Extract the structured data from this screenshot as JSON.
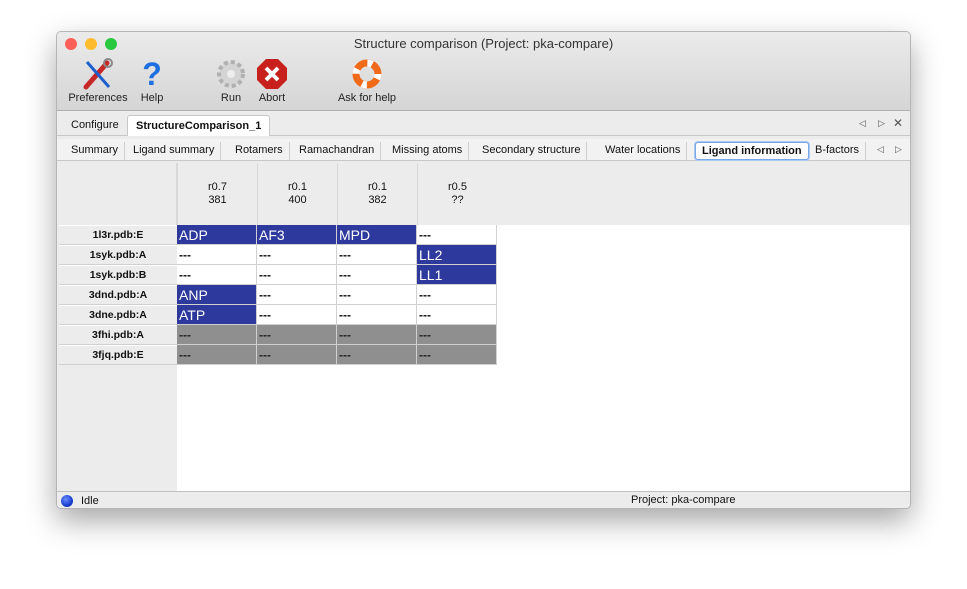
{
  "window": {
    "title": "Structure comparison (Project: pka-compare)"
  },
  "toolbar": {
    "preferences": "Preferences",
    "help": "Help",
    "run": "Run",
    "abort": "Abort",
    "ask_help": "Ask for help"
  },
  "tabs": [
    {
      "label": "Configure"
    },
    {
      "label": "StructureComparison_1",
      "active": true
    }
  ],
  "subtabs": [
    {
      "label": "Summary"
    },
    {
      "label": "Ligand summary"
    },
    {
      "label": "Rotamers"
    },
    {
      "label": "Ramachandran"
    },
    {
      "label": "Missing atoms"
    },
    {
      "label": "Secondary structure"
    },
    {
      "label": "Water locations"
    },
    {
      "label": "Ligand information",
      "active": true
    },
    {
      "label": "B-factors"
    }
  ],
  "table": {
    "columns": [
      {
        "line1": "r0.7",
        "line2": "381"
      },
      {
        "line1": "r0.1",
        "line2": "400"
      },
      {
        "line1": "r0.1",
        "line2": "382"
      },
      {
        "line1": "r0.5",
        "line2": "??"
      }
    ],
    "rows": [
      {
        "label": "1l3r.pdb:E",
        "cells": [
          {
            "text": "ADP",
            "state": "blue"
          },
          {
            "text": "AF3",
            "state": "blue"
          },
          {
            "text": "MPD",
            "state": "blue"
          },
          {
            "text": "---",
            "state": "white"
          }
        ]
      },
      {
        "label": "1syk.pdb:A",
        "cells": [
          {
            "text": "---",
            "state": "white"
          },
          {
            "text": "---",
            "state": "white"
          },
          {
            "text": "---",
            "state": "white"
          },
          {
            "text": "LL2",
            "state": "blue"
          }
        ]
      },
      {
        "label": "1syk.pdb:B",
        "cells": [
          {
            "text": "---",
            "state": "white"
          },
          {
            "text": "---",
            "state": "white"
          },
          {
            "text": "---",
            "state": "white"
          },
          {
            "text": "LL1",
            "state": "blue"
          }
        ]
      },
      {
        "label": "3dnd.pdb:A",
        "cells": [
          {
            "text": "ANP",
            "state": "blue"
          },
          {
            "text": "---",
            "state": "white"
          },
          {
            "text": "---",
            "state": "white"
          },
          {
            "text": "---",
            "state": "white"
          }
        ]
      },
      {
        "label": "3dne.pdb:A",
        "cells": [
          {
            "text": "ATP",
            "state": "blue"
          },
          {
            "text": "---",
            "state": "white"
          },
          {
            "text": "---",
            "state": "white"
          },
          {
            "text": "---",
            "state": "white"
          }
        ]
      },
      {
        "label": "3fhi.pdb:A",
        "cells": [
          {
            "text": "---",
            "state": "gray"
          },
          {
            "text": "---",
            "state": "gray"
          },
          {
            "text": "---",
            "state": "gray"
          },
          {
            "text": "---",
            "state": "gray"
          }
        ]
      },
      {
        "label": "3fjq.pdb:E",
        "cells": [
          {
            "text": "---",
            "state": "gray"
          },
          {
            "text": "---",
            "state": "gray"
          },
          {
            "text": "---",
            "state": "gray"
          },
          {
            "text": "---",
            "state": "gray"
          }
        ]
      }
    ]
  },
  "status": {
    "text": "Idle",
    "project": "Project: pka-compare",
    "indicator_color": "#1a3fd0"
  },
  "colors": {
    "highlight": "#2e399d",
    "missing": "#8f8f8f"
  }
}
